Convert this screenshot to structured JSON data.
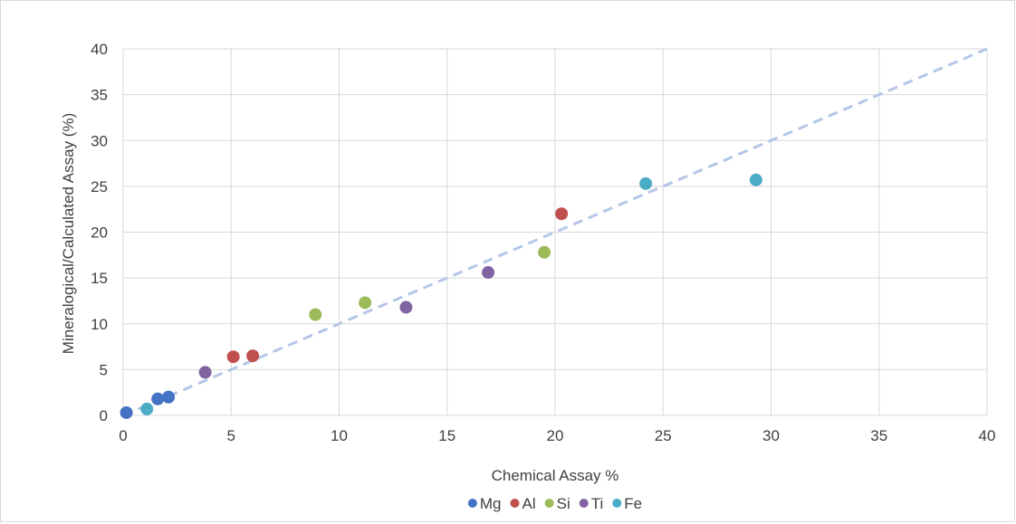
{
  "chart_data": {
    "type": "scatter",
    "title": "",
    "xlabel": "Chemical Assay %",
    "ylabel": "Mineralogical/Calculated Assay (%)",
    "xlim": [
      0,
      40
    ],
    "ylim": [
      0,
      40
    ],
    "xticks": [
      0,
      5,
      10,
      15,
      20,
      25,
      30,
      35,
      40
    ],
    "yticks": [
      0,
      5,
      10,
      15,
      20,
      25,
      30,
      35,
      40
    ],
    "grid": true,
    "legend_position": "bottom",
    "series": [
      {
        "name": "Mg",
        "color": "#4472c4",
        "points": [
          [
            0.15,
            0.3
          ],
          [
            1.6,
            1.8
          ],
          [
            2.1,
            2.0
          ]
        ]
      },
      {
        "name": "Al",
        "color": "#c0504d",
        "points": [
          [
            5.1,
            6.4
          ],
          [
            6.0,
            6.5
          ],
          [
            20.3,
            22.0
          ]
        ]
      },
      {
        "name": "Si",
        "color": "#9bbb59",
        "points": [
          [
            8.9,
            11.0
          ],
          [
            11.2,
            12.3
          ],
          [
            19.5,
            17.8
          ]
        ]
      },
      {
        "name": "Ti",
        "color": "#8064a2",
        "points": [
          [
            3.8,
            4.7
          ],
          [
            13.1,
            11.8
          ],
          [
            16.9,
            15.6
          ]
        ]
      },
      {
        "name": "Fe",
        "color": "#4bacc6",
        "points": [
          [
            1.1,
            0.7
          ],
          [
            24.2,
            25.3
          ],
          [
            29.3,
            25.7
          ]
        ]
      }
    ],
    "reference_line": {
      "from": [
        0,
        0
      ],
      "to": [
        40,
        40
      ],
      "style": "dashed",
      "color": "#b4c7e7"
    }
  }
}
